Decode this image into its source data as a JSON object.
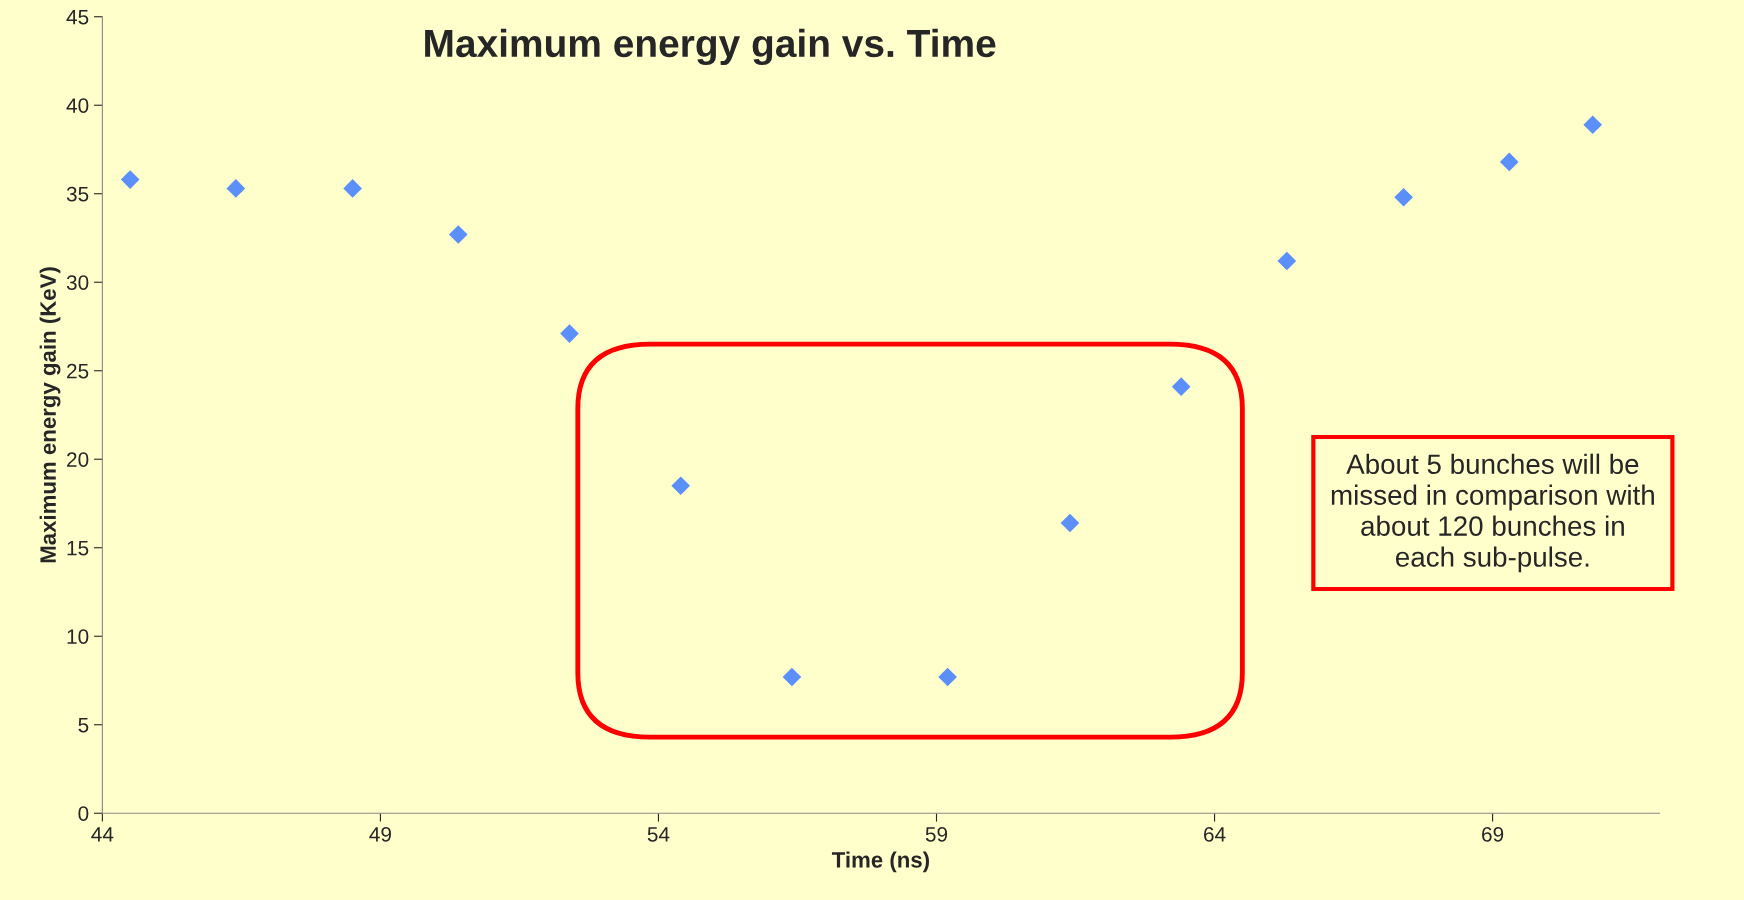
{
  "chart_data": {
    "type": "scatter",
    "title": "Maximum energy gain vs. Time",
    "xlabel": "Time (ns)",
    "ylabel": "Maximum energy gain (KeV)",
    "x": [
      44.5,
      46.4,
      48.5,
      50.4,
      52.4,
      54.4,
      56.4,
      59.2,
      61.4,
      63.4,
      65.3,
      67.4,
      69.3,
      70.8
    ],
    "series": [
      {
        "color": "#5b8ff9",
        "values": [
          35.8,
          35.3,
          35.3,
          32.7,
          27.1,
          18.5,
          7.7,
          7.7,
          16.4,
          24.1,
          31.2,
          34.8,
          36.8,
          38.9
        ]
      }
    ],
    "marker": "diamond",
    "grid": false,
    "legend": false,
    "xlim": [
      44,
      72
    ],
    "xticks": [
      44,
      49,
      54,
      59,
      64,
      69
    ],
    "ylim": [
      0,
      45
    ],
    "yticks": [
      0,
      5,
      10,
      15,
      20,
      25,
      30,
      35,
      40,
      45
    ],
    "annotations": [
      "About 5 bunches will be\nmissed in comparison with\nabout 120 bunches in\neach sub-pulse."
    ]
  }
}
